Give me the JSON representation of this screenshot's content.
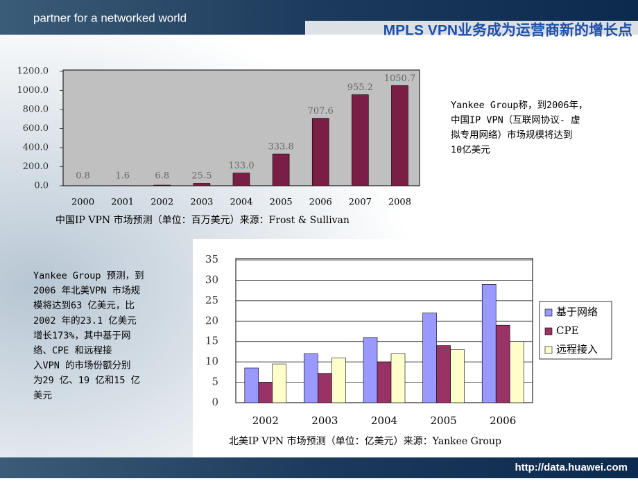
{
  "header": {
    "tagline": "partner for a networked world",
    "title": "MPLS VPN业务成为运营商新的增长点"
  },
  "notes": [
    [
      "Yankee Group称，到2006年，",
      "中国IP VPN（互联网协议- 虚",
      "拟专用网络）市场规模将达到",
      "10亿美元"
    ],
    [
      "Yankee Group 预测，到",
      "2006 年北美VPN 市场规",
      "模将达到63 亿美元，比",
      "2002 年的23.1 亿美元",
      "增长173%，其中基于网",
      "络、CPE 和远程接",
      "入VPN 的市场份额分别",
      "为29 亿、19 亿和15 亿",
      "美元"
    ]
  ],
  "footer": {
    "url": "http://data.huawei.com"
  },
  "chart_data": [
    {
      "type": "bar",
      "caption": "中国IP VPN 市场预测（单位：百万美元）来源：Frost & Sullivan",
      "categories": [
        "2000",
        "2001",
        "2002",
        "2003",
        "2004",
        "2005",
        "2006",
        "2007",
        "2008"
      ],
      "values": [
        0.8,
        1.6,
        6.8,
        25.5,
        133.0,
        333.8,
        707.6,
        955.2,
        1050.7
      ],
      "value_labels": [
        "0.8",
        "1.6",
        "6.8",
        "25.5",
        "133.0",
        "333.8",
        "707.6",
        "955.2",
        "1050.7"
      ],
      "color": "#7a1e45",
      "ylim": [
        0,
        1200
      ],
      "yticks": [
        {
          "value": 0,
          "label": "0.0"
        },
        {
          "value": 200,
          "label": "200.0"
        },
        {
          "value": 400,
          "label": "400.0"
        },
        {
          "value": 600,
          "label": "600.0"
        },
        {
          "value": 800,
          "label": "800.0"
        },
        {
          "value": 1000,
          "label": "1000.0"
        },
        {
          "value": 1200,
          "label": "1200.0"
        }
      ],
      "grid": false
    },
    {
      "type": "bar",
      "caption": "北美IP VPN 市场预测（单位：亿美元）来源：Yankee Group",
      "categories": [
        "2002",
        "2003",
        "2004",
        "2005",
        "2006"
      ],
      "series": [
        {
          "name": "基于网络",
          "color": "#9999ff",
          "values": [
            8.5,
            12,
            16,
            22,
            29
          ]
        },
        {
          "name": "CPE",
          "color": "#993366",
          "values": [
            5,
            7.2,
            10,
            14,
            19
          ]
        },
        {
          "name": "远程接入",
          "color": "#ffffcc",
          "values": [
            9.5,
            11,
            12,
            13,
            15
          ]
        }
      ],
      "ylim": [
        0,
        35
      ],
      "yticks": [
        0,
        5,
        10,
        15,
        20,
        25,
        30,
        35
      ],
      "grid": true,
      "legend": "right"
    }
  ]
}
